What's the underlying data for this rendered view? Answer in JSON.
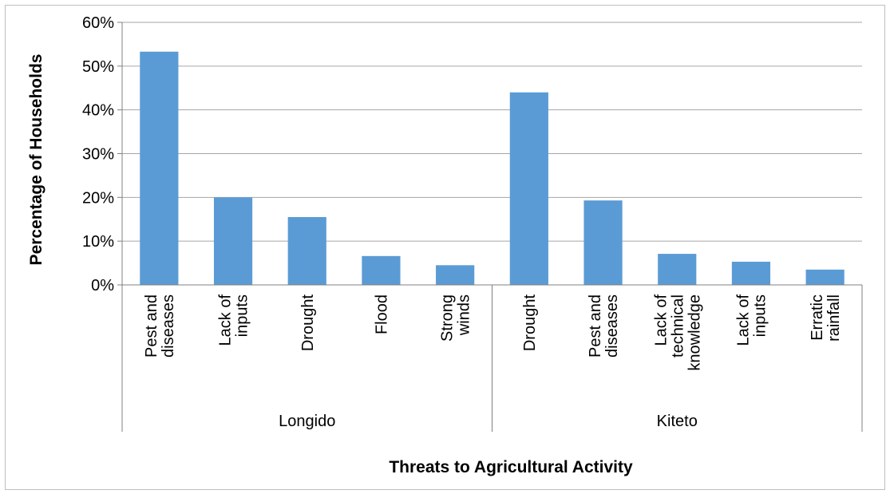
{
  "chart_data": {
    "type": "bar",
    "title": "",
    "xlabel": "Threats to Agricultural Activity",
    "ylabel": "Percentage of Households",
    "ylim": [
      0,
      0.6
    ],
    "yticks": [
      "0%",
      "10%",
      "20%",
      "30%",
      "40%",
      "50%",
      "60%"
    ],
    "grid": true,
    "bar_color": "#5b9bd5",
    "groups": [
      {
        "name": "Longido",
        "categories": [
          [
            "Pest and",
            "diseases"
          ],
          [
            "Lack of",
            "inputs"
          ],
          [
            "Drought"
          ],
          [
            "Flood"
          ],
          [
            "Strong",
            "winds"
          ]
        ],
        "values": [
          0.533,
          0.2,
          0.155,
          0.066,
          0.045
        ]
      },
      {
        "name": "Kiteto",
        "categories": [
          [
            "Drought"
          ],
          [
            "Pest and",
            "diseases"
          ],
          [
            "Lack of",
            "technical",
            "knowledge"
          ],
          [
            "Lack of",
            "inputs"
          ],
          [
            "Erratic",
            "rainfall"
          ]
        ],
        "values": [
          0.44,
          0.193,
          0.071,
          0.053,
          0.035
        ]
      }
    ]
  }
}
